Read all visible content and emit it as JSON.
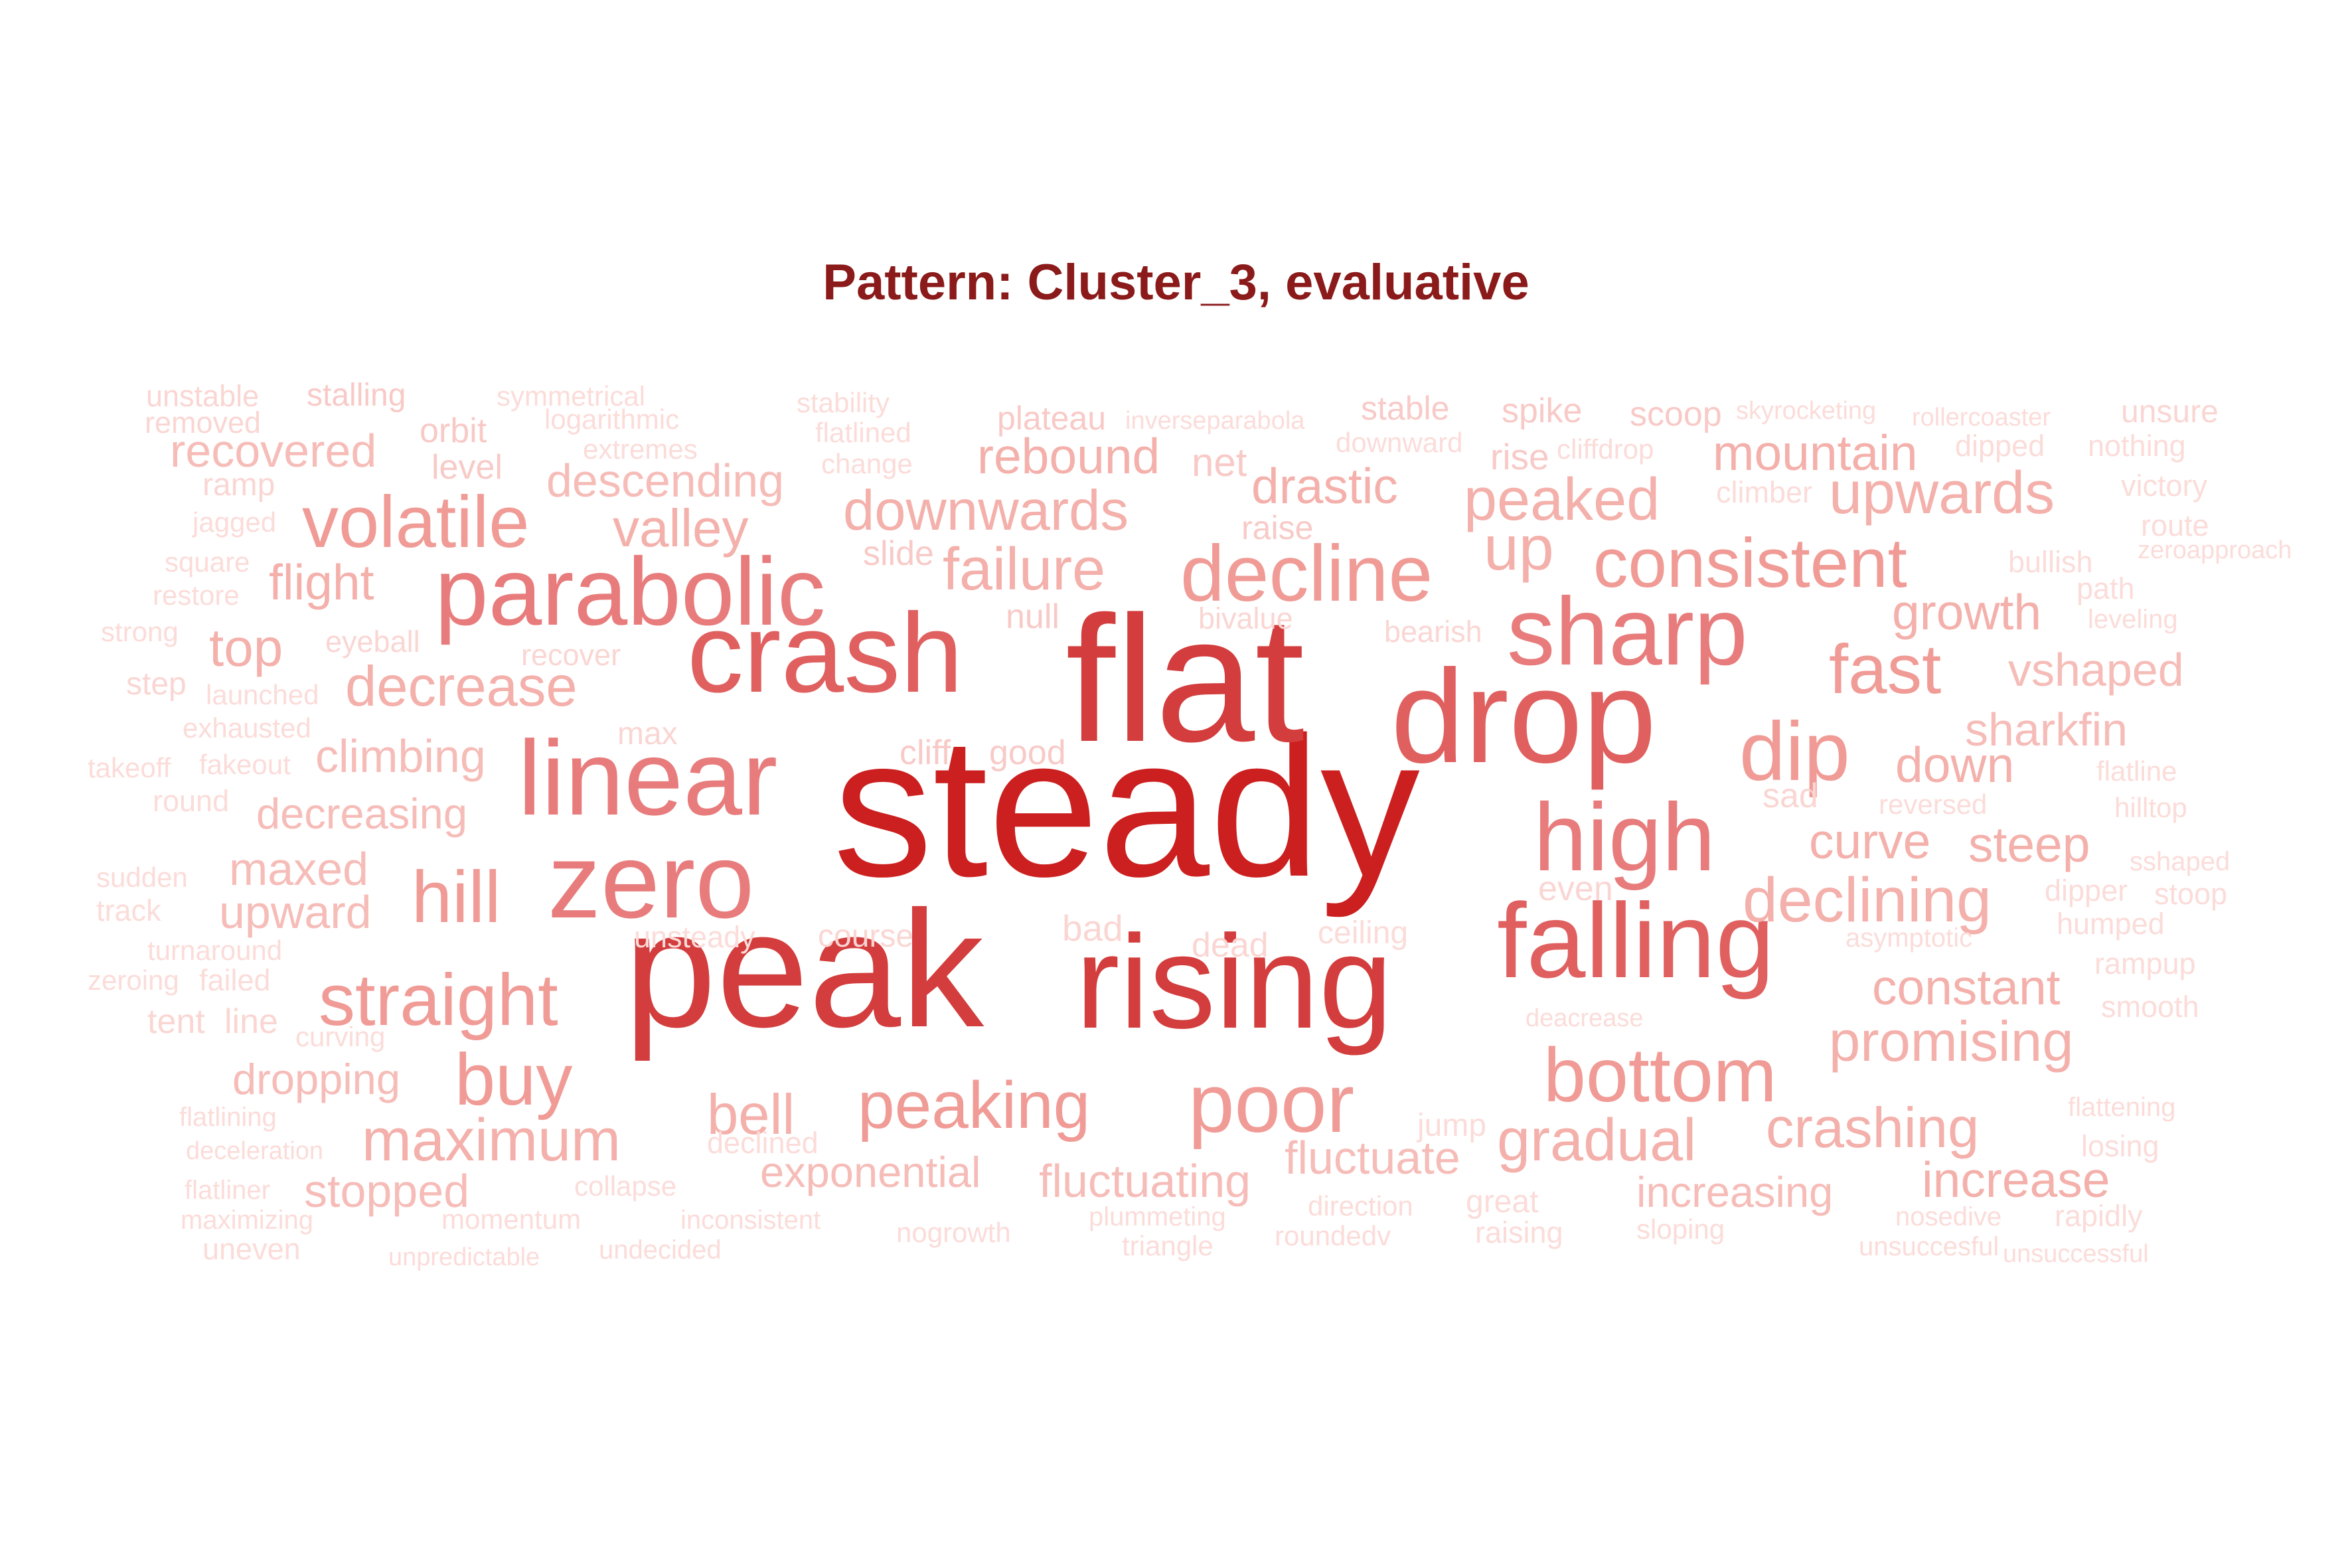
{
  "title": "Pattern: Cluster_3, evaluative",
  "words": [
    {
      "text": "steady",
      "weight": 10
    },
    {
      "text": "flat",
      "weight": 8.5
    },
    {
      "text": "peak",
      "weight": 8.5
    },
    {
      "text": "rising",
      "weight": 8
    },
    {
      "text": "drop",
      "weight": 7
    },
    {
      "text": "crash",
      "weight": 7
    },
    {
      "text": "falling",
      "weight": 7
    },
    {
      "text": "linear",
      "weight": 6.5
    },
    {
      "text": "zero",
      "weight": 6.5
    },
    {
      "text": "parabolic",
      "weight": 6.5
    },
    {
      "text": "sharp",
      "weight": 6
    },
    {
      "text": "high",
      "weight": 6
    },
    {
      "text": "dip",
      "weight": 5.5
    },
    {
      "text": "poor",
      "weight": 5.5
    },
    {
      "text": "decline",
      "weight": 5
    },
    {
      "text": "bottom",
      "weight": 5
    },
    {
      "text": "consistent",
      "weight": 5
    },
    {
      "text": "volatile",
      "weight": 5
    },
    {
      "text": "straight",
      "weight": 5
    },
    {
      "text": "peaking",
      "weight": 5
    },
    {
      "text": "fast",
      "weight": 5
    },
    {
      "text": "hill",
      "weight": 5
    },
    {
      "text": "buy",
      "weight": 5
    },
    {
      "text": "declining",
      "weight": 4.5
    },
    {
      "text": "peaked",
      "weight": 4.5
    },
    {
      "text": "upwards",
      "weight": 4.5
    },
    {
      "text": "downwards",
      "weight": 4.5
    },
    {
      "text": "failure",
      "weight": 4.5
    },
    {
      "text": "promising",
      "weight": 4.5
    },
    {
      "text": "crashing",
      "weight": 4.5
    },
    {
      "text": "gradual",
      "weight": 4.5
    },
    {
      "text": "maximum",
      "weight": 4.5
    },
    {
      "text": "up",
      "weight": 4.5
    },
    {
      "text": "curve",
      "weight": 4
    },
    {
      "text": "steep",
      "weight": 4
    },
    {
      "text": "decrease",
      "weight": 4
    },
    {
      "text": "top",
      "weight": 4
    },
    {
      "text": "growth",
      "weight": 4
    },
    {
      "text": "bell",
      "weight": 4
    },
    {
      "text": "constant",
      "weight": 4
    },
    {
      "text": "increase",
      "weight": 4
    },
    {
      "text": "down",
      "weight": 4
    },
    {
      "text": "rebound",
      "weight": 4
    },
    {
      "text": "drastic",
      "weight": 4
    },
    {
      "text": "mountain",
      "weight": 4
    },
    {
      "text": "valley",
      "weight": 4
    },
    {
      "text": "flight",
      "weight": 4
    },
    {
      "text": "sharkfin",
      "weight": 3.7
    },
    {
      "text": "vshaped",
      "weight": 3.7
    },
    {
      "text": "fluctuate",
      "weight": 3.7
    },
    {
      "text": "fluctuating",
      "weight": 3.7
    },
    {
      "text": "exponential",
      "weight": 3.7
    },
    {
      "text": "increasing",
      "weight": 3.7
    },
    {
      "text": "recovered",
      "weight": 3.7
    },
    {
      "text": "descending",
      "weight": 3.7
    },
    {
      "text": "climbing",
      "weight": 3.7
    },
    {
      "text": "decreasing",
      "weight": 3.5
    },
    {
      "text": "maxed",
      "weight": 3.7
    },
    {
      "text": "upward",
      "weight": 3.7
    },
    {
      "text": "dropping",
      "weight": 3.7
    },
    {
      "text": "stopped",
      "weight": 3.7
    },
    {
      "text": "net",
      "weight": 3.2
    },
    {
      "text": "cliff",
      "weight": 3
    },
    {
      "text": "good",
      "weight": 3
    },
    {
      "text": "null",
      "weight": 3
    },
    {
      "text": "slide",
      "weight": 3
    },
    {
      "text": "raise",
      "weight": 3
    },
    {
      "text": "bivalue",
      "weight": 2.8
    },
    {
      "text": "recover",
      "weight": 2.8
    },
    {
      "text": "bearish",
      "weight": 2.8
    },
    {
      "text": "eyeball",
      "weight": 2.8
    },
    {
      "text": "max",
      "weight": 2.8
    },
    {
      "text": "level",
      "weight": 3
    },
    {
      "text": "orbit",
      "weight": 3
    },
    {
      "text": "rise",
      "weight": 3
    },
    {
      "text": "spike",
      "weight": 3
    },
    {
      "text": "scoop",
      "weight": 3
    },
    {
      "text": "stable",
      "weight": 3
    },
    {
      "text": "plateau",
      "weight": 3
    },
    {
      "text": "stalling",
      "weight": 3
    },
    {
      "text": "unstable",
      "weight": 2.8
    },
    {
      "text": "removed",
      "weight": 2.8
    },
    {
      "text": "symmetrical",
      "weight": 2.6
    },
    {
      "text": "logarithmic",
      "weight": 2.6
    },
    {
      "text": "extremes",
      "weight": 2.6
    },
    {
      "text": "stability",
      "weight": 2.6
    },
    {
      "text": "flatlined",
      "weight": 2.6
    },
    {
      "text": "change",
      "weight": 2.6
    },
    {
      "text": "inverseparabola",
      "weight": 2.4
    },
    {
      "text": "downward",
      "weight": 2.6
    },
    {
      "text": "cliffdrop",
      "weight": 2.6
    },
    {
      "text": "skyrocketing",
      "weight": 2.4
    },
    {
      "text": "rollercoaster",
      "weight": 2.4
    },
    {
      "text": "unsure",
      "weight": 2.8
    },
    {
      "text": "dipped",
      "weight": 2.6
    },
    {
      "text": "nothing",
      "weight": 2.6
    },
    {
      "text": "climber",
      "weight": 2.6
    },
    {
      "text": "victory",
      "weight": 2.6
    },
    {
      "text": "route",
      "weight": 2.6
    },
    {
      "text": "zeroapproach",
      "weight": 2.4
    },
    {
      "text": "bullish",
      "weight": 2.6
    },
    {
      "text": "path",
      "weight": 2.6
    },
    {
      "text": "leveling",
      "weight": 2.4
    },
    {
      "text": "ramp",
      "weight": 2.8
    },
    {
      "text": "jagged",
      "weight": 2.6
    },
    {
      "text": "square",
      "weight": 2.6
    },
    {
      "text": "restore",
      "weight": 2.6
    },
    {
      "text": "strong",
      "weight": 2.6
    },
    {
      "text": "step",
      "weight": 2.8
    },
    {
      "text": "launched",
      "weight": 2.6
    },
    {
      "text": "exhausted",
      "weight": 2.6
    },
    {
      "text": "takeoff",
      "weight": 2.6
    },
    {
      "text": "fakeout",
      "weight": 2.6
    },
    {
      "text": "round",
      "weight": 2.6
    },
    {
      "text": "sudden",
      "weight": 2.6
    },
    {
      "text": "track",
      "weight": 2.6
    },
    {
      "text": "turnaround",
      "weight": 2.6
    },
    {
      "text": "zeroing",
      "weight": 2.6
    },
    {
      "text": "failed",
      "weight": 2.6
    },
    {
      "text": "tent",
      "weight": 2.8
    },
    {
      "text": "line",
      "weight": 2.8
    },
    {
      "text": "curving",
      "weight": 2.6
    },
    {
      "text": "flatlining",
      "weight": 2.4
    },
    {
      "text": "deceleration",
      "weight": 2.4
    },
    {
      "text": "flatliner",
      "weight": 2.4
    },
    {
      "text": "maximizing",
      "weight": 2.4
    },
    {
      "text": "uneven",
      "weight": 2.6
    },
    {
      "text": "momentum",
      "weight": 2.4
    },
    {
      "text": "collapse",
      "weight": 2.4
    },
    {
      "text": "unpredictable",
      "weight": 2.4
    },
    {
      "text": "inconsistent",
      "weight": 2.4
    },
    {
      "text": "undecided",
      "weight": 2.4
    },
    {
      "text": "nogrowth",
      "weight": 2.4
    },
    {
      "text": "plummeting",
      "weight": 2.4
    },
    {
      "text": "triangle",
      "weight": 2.4
    },
    {
      "text": "direction",
      "weight": 2.4
    },
    {
      "text": "roundedv",
      "weight": 2.4
    },
    {
      "text": "great",
      "weight": 2.6
    },
    {
      "text": "raising",
      "weight": 2.6
    },
    {
      "text": "sloping",
      "weight": 2.4
    },
    {
      "text": "nosedive",
      "weight": 2.4
    },
    {
      "text": "rapidly",
      "weight": 2.6
    },
    {
      "text": "unsuccesful",
      "weight": 2.4
    },
    {
      "text": "unsuccessful",
      "weight": 2.4
    },
    {
      "text": "flattening",
      "weight": 2.4
    },
    {
      "text": "losing",
      "weight": 2.6
    },
    {
      "text": "smooth",
      "weight": 2.6
    },
    {
      "text": "rampup",
      "weight": 2.6
    },
    {
      "text": "humped",
      "weight": 2.6
    },
    {
      "text": "stoop",
      "weight": 2.6
    },
    {
      "text": "dipper",
      "weight": 2.6
    },
    {
      "text": "sshaped",
      "weight": 2.4
    },
    {
      "text": "hilltop",
      "weight": 2.6
    },
    {
      "text": "flatline",
      "weight": 2.6
    },
    {
      "text": "asymptotic",
      "weight": 2.4
    },
    {
      "text": "reversed",
      "weight": 2.6
    },
    {
      "text": "sad",
      "weight": 2.8
    },
    {
      "text": "even",
      "weight": 2.8
    },
    {
      "text": "deacrease",
      "weight": 2.4
    },
    {
      "text": "jump",
      "weight": 2.6
    },
    {
      "text": "ceiling",
      "weight": 2.6
    },
    {
      "text": "dead",
      "weight": 2.8
    },
    {
      "text": "bad",
      "weight": 2.8
    },
    {
      "text": "course",
      "weight": 2.8
    },
    {
      "text": "unsteady",
      "weight": 2.6
    },
    {
      "text": "declined",
      "weight": 2.6
    }
  ]
}
